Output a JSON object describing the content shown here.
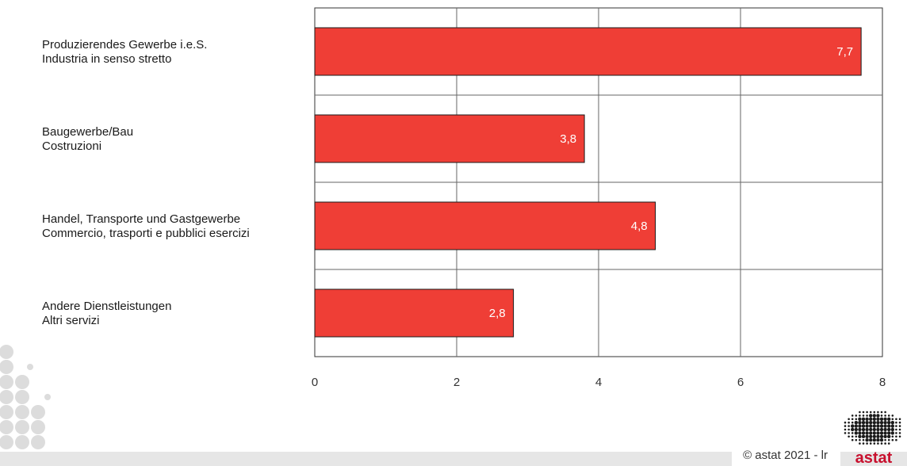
{
  "chart_data": {
    "type": "bar",
    "orientation": "horizontal",
    "categories": [
      [
        "Produzierendes Gewerbe i.e.S.",
        "Industria in senso stretto"
      ],
      [
        "Baugewerbe/Bau",
        "Costruzioni"
      ],
      [
        "Handel, Transporte und Gastgewerbe",
        "Commercio, trasporti e pubblici esercizi"
      ],
      [
        "Andere Dienstleistungen",
        "Altri servizi"
      ]
    ],
    "values": [
      7.7,
      3.8,
      4.8,
      2.8
    ],
    "value_labels": [
      "7,7",
      "3,8",
      "4,8",
      "2,8"
    ],
    "xlim": [
      0,
      8
    ],
    "xticks": [
      0,
      2,
      4,
      6,
      8
    ],
    "xtick_labels": [
      "0",
      "2",
      "4",
      "6",
      "8"
    ],
    "grid": true,
    "bar_color": "#ef3e36",
    "title": "",
    "xlabel": "",
    "ylabel": ""
  },
  "footer": {
    "copyright": "© astat 2021 - lr",
    "logo_text": "astat"
  },
  "colors": {
    "bar": "#ef3e36",
    "logo": "#c8102e",
    "band": "#e6e6e6",
    "dots": "#dcdcdc"
  }
}
